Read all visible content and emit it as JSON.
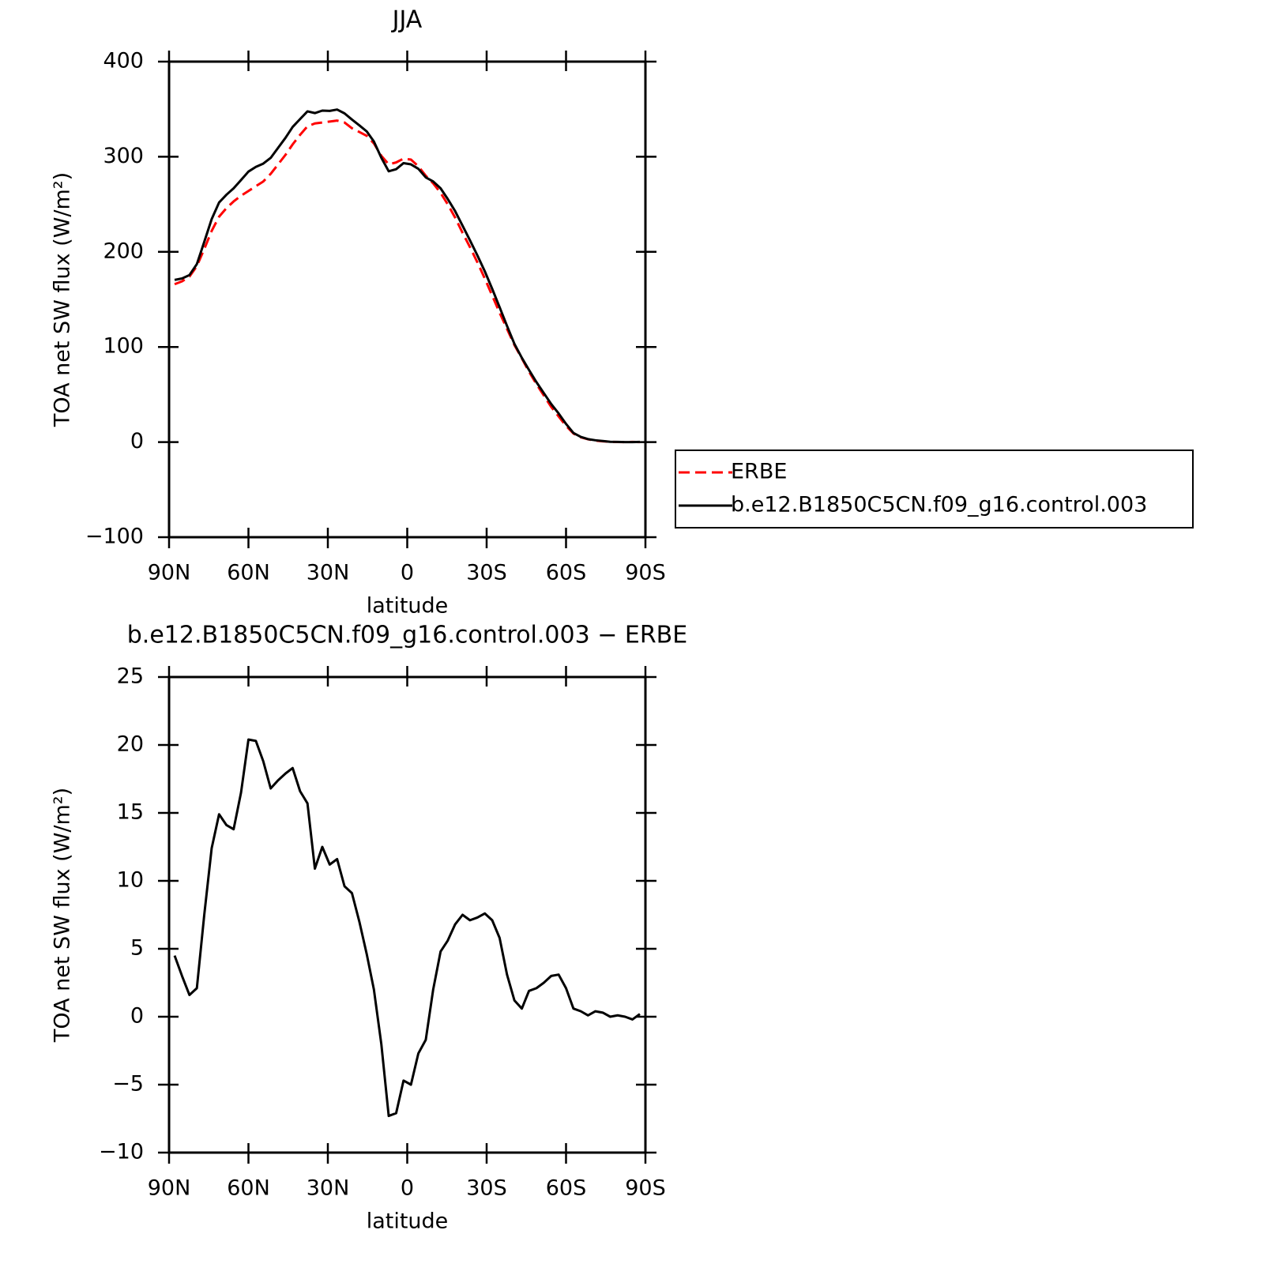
{
  "chart_data": [
    {
      "type": "line",
      "title": "JJA",
      "xlabel": "latitude",
      "ylabel": "TOA net SW flux (W/m²)",
      "x": [
        87.9,
        85.1,
        82.3,
        79.5,
        76.7,
        73.9,
        71.1,
        68.3,
        65.6,
        62.8,
        60.0,
        57.2,
        54.4,
        51.6,
        48.8,
        46.0,
        43.3,
        40.5,
        37.7,
        34.9,
        32.1,
        29.3,
        26.5,
        23.7,
        20.9,
        18.1,
        15.3,
        12.6,
        9.8,
        7.0,
        4.2,
        1.4,
        -1.4,
        -4.2,
        -7.0,
        -9.8,
        -12.6,
        -15.3,
        -18.1,
        -20.9,
        -23.7,
        -26.5,
        -29.3,
        -32.1,
        -34.9,
        -37.7,
        -40.5,
        -43.3,
        -46.0,
        -48.8,
        -51.6,
        -54.4,
        -57.2,
        -60.0,
        -62.8,
        -65.6,
        -68.3,
        -71.1,
        -73.9,
        -76.7,
        -79.5,
        -82.3,
        -85.1,
        -87.9
      ],
      "series": [
        {
          "name": "ERBE",
          "color": "#ff0000",
          "style": "dashed",
          "values": [
            166,
            169,
            174,
            185,
            203,
            222,
            237,
            246,
            253,
            259,
            264,
            269,
            274,
            282,
            292,
            302,
            313,
            323,
            332,
            335,
            336,
            337,
            338,
            336,
            330,
            326,
            322,
            314,
            301,
            292,
            294,
            298,
            297,
            290,
            280,
            272,
            262,
            250,
            236,
            220,
            205,
            189,
            172,
            154,
            136,
            119,
            102,
            88,
            74,
            61,
            49,
            37,
            27,
            17,
            9,
            5,
            3,
            1.5,
            0.8,
            0.3,
            0.1,
            0,
            0.2,
            0
          ]
        },
        {
          "name": "b.e12.B1850C5CN.f09_g16.control.003",
          "color": "#000000",
          "style": "solid",
          "values": [
            170.5,
            172,
            175.6,
            187.1,
            210.5,
            234.4,
            251.9,
            260.1,
            266.8,
            275.5,
            284.4,
            289.3,
            292.8,
            298.8,
            309.4,
            319.9,
            331.3,
            339.6,
            347.7,
            345.9,
            348.5,
            348.2,
            349.6,
            345.6,
            339.1,
            333,
            326.6,
            316,
            299,
            284.7,
            286.9,
            293.3,
            292,
            287.3,
            278.3,
            274,
            266.8,
            255.6,
            242.8,
            227.5,
            212.1,
            196.3,
            179.6,
            161.1,
            141.8,
            122.1,
            103.2,
            88.6,
            75.9,
            63.1,
            51.5,
            40,
            30.1,
            19.1,
            9.6,
            5.4,
            3.1,
            1.9,
            1.1,
            0.3,
            0.2,
            0,
            0,
            0.2
          ]
        }
      ],
      "xlim": [
        90,
        -90
      ],
      "xticks": [
        {
          "value": 90,
          "label": "90N"
        },
        {
          "value": 60,
          "label": "60N"
        },
        {
          "value": 30,
          "label": "30N"
        },
        0,
        {
          "value": -30,
          "label": "30S"
        },
        {
          "value": -60,
          "label": "60S"
        },
        {
          "value": -90,
          "label": "90S"
        }
      ],
      "ylim": [
        -100,
        400
      ],
      "yticks": [
        {
          "value": -100,
          "label": "−100"
        },
        0,
        100,
        200,
        300,
        400
      ],
      "legend": "right"
    },
    {
      "type": "line",
      "title": "b.e12.B1850C5CN.f09_g16.control.003 − ERBE",
      "xlabel": "latitude",
      "ylabel": "TOA net SW flux (W/m²)",
      "x": [
        87.9,
        85.1,
        82.3,
        79.5,
        76.7,
        73.9,
        71.1,
        68.3,
        65.6,
        62.8,
        60.0,
        57.2,
        54.4,
        51.6,
        48.8,
        46.0,
        43.3,
        40.5,
        37.7,
        34.9,
        32.1,
        29.3,
        26.5,
        23.7,
        20.9,
        18.1,
        15.3,
        12.6,
        9.8,
        7.0,
        4.2,
        1.4,
        -1.4,
        -4.2,
        -7.0,
        -9.8,
        -12.6,
        -15.3,
        -18.1,
        -20.9,
        -23.7,
        -26.5,
        -29.3,
        -32.1,
        -34.9,
        -37.7,
        -40.5,
        -43.3,
        -46.0,
        -48.8,
        -51.6,
        -54.4,
        -57.2,
        -60.0,
        -62.8,
        -65.6,
        -68.3,
        -71.1,
        -73.9,
        -76.7,
        -79.5,
        -82.3,
        -85.1,
        -87.9
      ],
      "series": [
        {
          "color": "#000000",
          "style": "solid",
          "values": [
            4.5,
            3.0,
            1.6,
            2.1,
            7.5,
            12.4,
            14.9,
            14.1,
            13.8,
            16.5,
            20.4,
            20.3,
            18.8,
            16.8,
            17.4,
            17.9,
            18.3,
            16.6,
            15.7,
            10.9,
            12.5,
            11.2,
            11.6,
            9.6,
            9.1,
            7.0,
            4.6,
            2.0,
            -2.0,
            -7.3,
            -7.1,
            -4.7,
            -5.0,
            -2.7,
            -1.7,
            2.0,
            4.8,
            5.6,
            6.8,
            7.5,
            7.1,
            7.3,
            7.6,
            7.1,
            5.8,
            3.1,
            1.2,
            0.6,
            1.9,
            2.1,
            2.5,
            3.0,
            3.1,
            2.1,
            0.6,
            0.4,
            0.1,
            0.4,
            0.3,
            0.0,
            0.1,
            0.0,
            -0.2,
            0.2
          ]
        }
      ],
      "xlim": [
        90,
        -90
      ],
      "xticks": [
        {
          "value": 90,
          "label": "90N"
        },
        {
          "value": 60,
          "label": "60N"
        },
        {
          "value": 30,
          "label": "30N"
        },
        0,
        {
          "value": -30,
          "label": "30S"
        },
        {
          "value": -60,
          "label": "60S"
        },
        {
          "value": -90,
          "label": "90S"
        }
      ],
      "ylim": [
        -10,
        25
      ],
      "yticks": [
        {
          "value": -10,
          "label": "−10"
        },
        {
          "value": -5,
          "label": "−5"
        },
        0,
        5,
        10,
        15,
        20,
        25
      ]
    }
  ]
}
